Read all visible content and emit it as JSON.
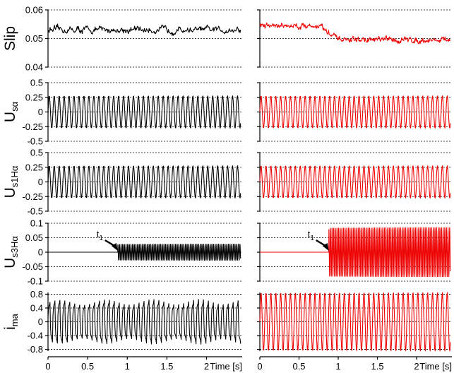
{
  "chart_data": {
    "type": "line",
    "x_axis": {
      "ticks": [
        "0",
        "0.5",
        "1",
        "1.5",
        "2"
      ],
      "tick_values": [
        0,
        0.5,
        1,
        1.5,
        2
      ],
      "label": "Time [s]",
      "xlim": [
        0,
        2.45
      ]
    },
    "series_colors": {
      "left": "#000000",
      "right": "#ee0000"
    },
    "rows": [
      {
        "id": "slip",
        "ylabel": "Slip",
        "ylim": [
          0.04,
          0.06
        ],
        "ticks": [
          "0.06",
          "0.05",
          "0.04"
        ],
        "tick_values": [
          0.06,
          0.05,
          0.04
        ],
        "left": {
          "kind": "noise",
          "levels": [
            [
              0,
              0.053
            ]
          ],
          "amp": 0.0012
        },
        "right": {
          "kind": "noise",
          "levels": [
            [
              0,
              0.0545
            ],
            [
              0.8,
              0.0535
            ],
            [
              1.0,
              0.0495
            ]
          ],
          "amp": 0.0011
        }
      },
      {
        "id": "usa",
        "ylabel": "U",
        "ylabel_sub": "sα",
        "ylim": [
          -0.5,
          0.5
        ],
        "ticks": [
          "0.5",
          "0.25",
          "0",
          "-0.25",
          "-0.5"
        ],
        "tick_values": [
          0.5,
          0.25,
          0,
          -0.25,
          -0.5
        ],
        "left": {
          "kind": "sine",
          "freq": 16,
          "segments": [
            [
              0,
              0.28
            ]
          ]
        },
        "right": {
          "kind": "sine",
          "freq": 16,
          "segments": [
            [
              0,
              0.28
            ]
          ]
        }
      },
      {
        "id": "us1ha",
        "ylabel": "U",
        "ylabel_sub": "s1Hα",
        "ylim": [
          -0.5,
          0.5
        ],
        "ticks": [
          "0.5",
          "0.25",
          "0",
          "-0.25",
          "-0.5"
        ],
        "tick_values": [
          0.5,
          0.25,
          0,
          -0.25,
          -0.5
        ],
        "left": {
          "kind": "sine",
          "freq": 16,
          "segments": [
            [
              0,
              0.28
            ]
          ]
        },
        "right": {
          "kind": "sine",
          "freq": 16,
          "segments": [
            [
              0,
              0.28
            ]
          ]
        }
      },
      {
        "id": "us3ha",
        "ylabel": "U",
        "ylabel_sub": "s3Hα",
        "ylim": [
          -0.1,
          0.1
        ],
        "ticks": [
          "0.1",
          "0.05",
          "0",
          "-0.05",
          "-0.1"
        ],
        "tick_values": [
          0.1,
          0.05,
          0,
          -0.05,
          -0.1
        ],
        "left": {
          "kind": "sine",
          "freq": 48,
          "segments": [
            [
              0,
              0
            ],
            [
              0.88,
              0.028
            ]
          ]
        },
        "right": {
          "kind": "sine",
          "freq": 48,
          "segments": [
            [
              0,
              0
            ],
            [
              0.88,
              0.085
            ]
          ]
        },
        "annotation": {
          "text": "t",
          "sub": "1",
          "x": 0.88
        }
      },
      {
        "id": "ima",
        "ylabel": "i",
        "ylabel_sub": "ma",
        "ylim": [
          -0.85,
          0.85
        ],
        "ticks": [
          "0.8",
          "0.4",
          "0",
          "-0.4",
          "-0.8"
        ],
        "tick_values": [
          0.8,
          0.4,
          0,
          -0.4,
          -0.8
        ],
        "left": {
          "kind": "distorted",
          "freq": 16,
          "amp": 0.72
        },
        "right": {
          "kind": "sine",
          "freq": 16,
          "segments": [
            [
              0,
              0.86
            ]
          ]
        }
      }
    ]
  }
}
